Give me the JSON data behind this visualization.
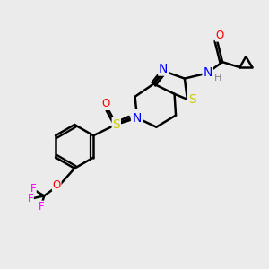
{
  "background_color": "#ebebeb",
  "bond_color": "#000000",
  "bond_width": 1.8,
  "colors": {
    "N": "#0000ff",
    "S": "#cccc00",
    "O": "#ff0000",
    "F": "#ff00ff",
    "H": "#808080",
    "C": "#000000"
  },
  "xlim": [
    0,
    10
  ],
  "ylim": [
    0,
    10
  ]
}
